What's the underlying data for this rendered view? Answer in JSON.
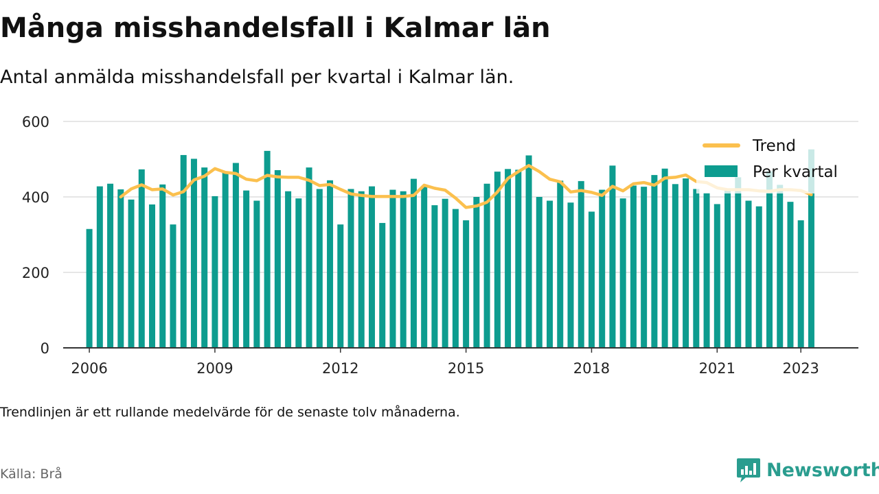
{
  "title": "Många misshandelsfall i Kalmar län",
  "subtitle": "Antal anmälda misshandelsfall per kvartal i Kalmar län.",
  "footnote": "Trendlinjen är ett rullande medelvärde för de senaste tolv månaderna.",
  "source": "Källa: Brå",
  "brand": {
    "name": "Newsworthy",
    "icon": "newsworthy-logo-icon"
  },
  "colors": {
    "bar": "#0d9c8f",
    "trend": "#fbc04e",
    "grid": "#dddddd",
    "axis": "#333333"
  },
  "chart_data": {
    "type": "bar",
    "title": "Många misshandelsfall i Kalmar län",
    "xlabel": "",
    "ylabel": "",
    "ylim": [
      0,
      600
    ],
    "yticks": [
      0,
      200,
      400,
      600
    ],
    "xlim": [
      2005.375,
      2024.375
    ],
    "xticks": [
      "2006",
      "2009",
      "2012",
      "2015",
      "2018",
      "2021",
      "2023"
    ],
    "grid": true,
    "legend_position": "top-right",
    "start_period": "2006 Q1",
    "series": [
      {
        "name": "Per kvartal",
        "type": "bar",
        "x": [
          "2006 Q1",
          "2006 Q2",
          "2006 Q3",
          "2006 Q4",
          "2007 Q1",
          "2007 Q2",
          "2007 Q3",
          "2007 Q4",
          "2008 Q1",
          "2008 Q2",
          "2008 Q3",
          "2008 Q4",
          "2009 Q1",
          "2009 Q2",
          "2009 Q3",
          "2009 Q4",
          "2010 Q1",
          "2010 Q2",
          "2010 Q3",
          "2010 Q4",
          "2011 Q1",
          "2011 Q2",
          "2011 Q3",
          "2011 Q4",
          "2012 Q1",
          "2012 Q2",
          "2012 Q3",
          "2012 Q4",
          "2013 Q1",
          "2013 Q2",
          "2013 Q3",
          "2013 Q4",
          "2014 Q1",
          "2014 Q2",
          "2014 Q3",
          "2014 Q4",
          "2015 Q1",
          "2015 Q2",
          "2015 Q3",
          "2015 Q4",
          "2016 Q1",
          "2016 Q2",
          "2016 Q3",
          "2016 Q4",
          "2017 Q1",
          "2017 Q2",
          "2017 Q3",
          "2017 Q4",
          "2018 Q1",
          "2018 Q2",
          "2018 Q3",
          "2018 Q4",
          "2019 Q1",
          "2019 Q2",
          "2019 Q3",
          "2019 Q4",
          "2020 Q1",
          "2020 Q2",
          "2020 Q3",
          "2020 Q4",
          "2021 Q1",
          "2021 Q2",
          "2021 Q3",
          "2021 Q4",
          "2022 Q1",
          "2022 Q2",
          "2022 Q3",
          "2022 Q4",
          "2023 Q1",
          "2023 Q2"
        ],
        "values": [
          315,
          428,
          435,
          420,
          393,
          473,
          380,
          433,
          327,
          511,
          501,
          478,
          402,
          467,
          490,
          417,
          390,
          522,
          471,
          415,
          396,
          478,
          421,
          444,
          327,
          421,
          415,
          428,
          331,
          419,
          415,
          448,
          429,
          378,
          395,
          368,
          338,
          400,
          435,
          467,
          474,
          472,
          510,
          400,
          390,
          443,
          385,
          442,
          361,
          419,
          483,
          396,
          430,
          427,
          458,
          475,
          434,
          449,
          421,
          411,
          381,
          419,
          452,
          390,
          375,
          468,
          432,
          387,
          338,
          526
        ]
      },
      {
        "name": "Trend",
        "type": "line",
        "x": [
          "2006 Q4",
          "2007 Q1",
          "2007 Q2",
          "2007 Q3",
          "2007 Q4",
          "2008 Q1",
          "2008 Q2",
          "2008 Q3",
          "2008 Q4",
          "2009 Q1",
          "2009 Q2",
          "2009 Q3",
          "2009 Q4",
          "2010 Q1",
          "2010 Q2",
          "2010 Q3",
          "2010 Q4",
          "2011 Q1",
          "2011 Q2",
          "2011 Q3",
          "2011 Q4",
          "2012 Q1",
          "2012 Q2",
          "2012 Q3",
          "2012 Q4",
          "2013 Q1",
          "2013 Q2",
          "2013 Q3",
          "2013 Q4",
          "2014 Q1",
          "2014 Q2",
          "2014 Q3",
          "2014 Q4",
          "2015 Q1",
          "2015 Q2",
          "2015 Q3",
          "2015 Q4",
          "2016 Q1",
          "2016 Q2",
          "2016 Q3",
          "2016 Q4",
          "2017 Q1",
          "2017 Q2",
          "2017 Q3",
          "2017 Q4",
          "2018 Q1",
          "2018 Q2",
          "2018 Q3",
          "2018 Q4",
          "2019 Q1",
          "2019 Q2",
          "2019 Q3",
          "2019 Q4",
          "2020 Q1",
          "2020 Q2",
          "2020 Q3",
          "2020 Q4",
          "2021 Q1",
          "2021 Q2",
          "2021 Q3",
          "2021 Q4",
          "2022 Q1",
          "2022 Q2",
          "2022 Q3",
          "2022 Q4",
          "2023 Q1",
          "2023 Q2"
        ],
        "values": [
          400,
          421,
          432,
          419,
          421,
          405,
          414,
          445,
          455,
          475,
          465,
          462,
          447,
          443,
          457,
          453,
          452,
          452,
          444,
          430,
          433,
          420,
          408,
          404,
          401,
          401,
          401,
          401,
          404,
          431,
          423,
          418,
          397,
          372,
          376,
          386,
          413,
          449,
          467,
          483,
          467,
          447,
          440,
          413,
          417,
          412,
          404,
          428,
          416,
          435,
          438,
          431,
          450,
          452,
          458,
          441,
          438,
          424,
          419,
          419,
          419,
          416,
          415,
          419,
          419,
          417,
          406
        ]
      }
    ]
  }
}
